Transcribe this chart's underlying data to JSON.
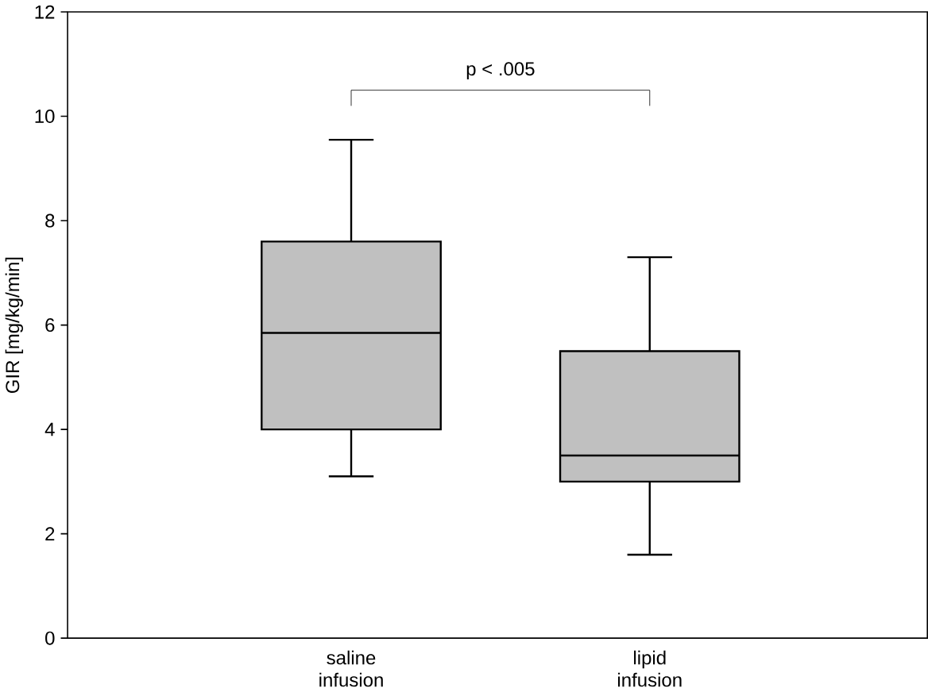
{
  "chart_data": {
    "type": "box",
    "ylabel": "GIR [mg/kg/min]",
    "categories": [
      "saline infusion",
      "lipid infusion"
    ],
    "boxes": [
      {
        "low": 3.1,
        "q1": 4.0,
        "median": 5.85,
        "q3": 7.6,
        "high": 9.55
      },
      {
        "low": 1.6,
        "q1": 3.0,
        "median": 3.5,
        "q3": 5.5,
        "high": 7.3
      }
    ],
    "color": "#c0c0c0",
    "ylim": [
      0,
      12
    ],
    "yticks": [
      0,
      2,
      4,
      6,
      8,
      10,
      12
    ],
    "annotations": [
      "p < .005"
    ]
  }
}
